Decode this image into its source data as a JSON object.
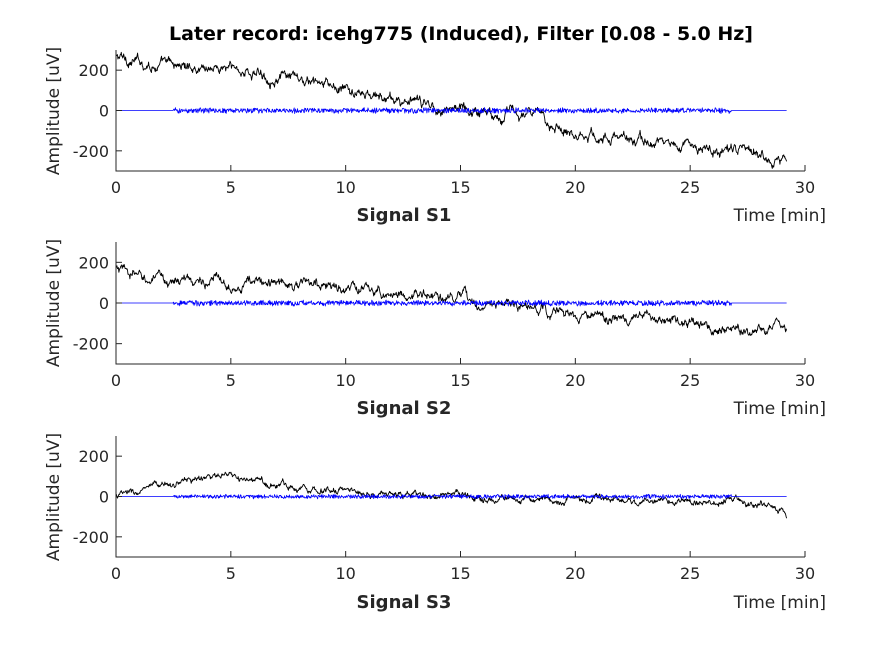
{
  "figure": {
    "title": "Later record: icehg775 (Induced), Filter [0.08 - 5.0 Hz]"
  },
  "colors": {
    "raw_signal": "#000000",
    "filtered_signal": "#0000ff",
    "axes": "#262626"
  },
  "chart_data": [
    {
      "type": "line",
      "subplot_label": "Signal S1",
      "xlabel": "Time [min]",
      "ylabel": "Amplitude [uV]",
      "xlim": [
        0,
        30
      ],
      "ylim": [
        -300,
        300
      ],
      "xticks": [
        0,
        5,
        10,
        15,
        20,
        25,
        30
      ],
      "yticks": [
        -200,
        0,
        200
      ],
      "grid": false,
      "series": [
        {
          "role": "raw",
          "color": "#000000",
          "x": [
            0,
            1,
            2,
            3,
            4,
            5,
            6,
            7,
            8,
            9,
            10,
            11,
            12,
            13,
            14,
            15,
            16,
            17,
            18,
            19,
            20,
            21,
            22,
            23,
            24,
            25,
            26,
            27,
            28,
            29,
            29.2
          ],
          "y": [
            265,
            240,
            225,
            220,
            220,
            210,
            185,
            170,
            140,
            120,
            95,
            70,
            50,
            35,
            20,
            10,
            0,
            -10,
            -25,
            -60,
            -100,
            -125,
            -140,
            -155,
            -165,
            -180,
            -195,
            -205,
            -215,
            -230,
            -235
          ],
          "noise": 32
        },
        {
          "role": "filtered",
          "color": "#0000ff",
          "x": [
            0,
            2.5,
            26.8,
            29.2
          ],
          "y": [
            0,
            0,
            0,
            0
          ],
          "noise_segment": [
            2.5,
            26.8
          ],
          "noise": 13
        }
      ]
    },
    {
      "type": "line",
      "subplot_label": "Signal S2",
      "xlabel": "Time [min]",
      "ylabel": "Amplitude [uV]",
      "xlim": [
        0,
        30
      ],
      "ylim": [
        -300,
        300
      ],
      "xticks": [
        0,
        5,
        10,
        15,
        20,
        25,
        30
      ],
      "yticks": [
        -200,
        0,
        200
      ],
      "grid": false,
      "series": [
        {
          "role": "raw",
          "color": "#000000",
          "x": [
            0,
            1,
            2,
            3,
            4,
            5,
            6,
            7,
            8,
            9,
            10,
            11,
            12,
            13,
            14,
            15,
            16,
            17,
            18,
            19,
            20,
            21,
            22,
            23,
            24,
            25,
            26,
            27,
            28,
            29,
            29.2
          ],
          "y": [
            165,
            125,
            105,
            110,
            110,
            105,
            100,
            95,
            95,
            85,
            70,
            60,
            50,
            40,
            25,
            10,
            0,
            -10,
            -25,
            -45,
            -65,
            -75,
            -80,
            -90,
            -95,
            -100,
            -110,
            -115,
            -120,
            -120,
            -120
          ],
          "noise": 30
        },
        {
          "role": "filtered",
          "color": "#0000ff",
          "x": [
            0,
            2.5,
            26.8,
            29.2
          ],
          "y": [
            0,
            0,
            0,
            0
          ],
          "noise_segment": [
            2.5,
            26.8
          ],
          "noise": 13
        }
      ]
    },
    {
      "type": "line",
      "subplot_label": "Signal S3",
      "xlabel": "Time [min]",
      "ylabel": "Amplitude [uV]",
      "xlim": [
        0,
        30
      ],
      "ylim": [
        -300,
        300
      ],
      "xticks": [
        0,
        5,
        10,
        15,
        20,
        25,
        30
      ],
      "yticks": [
        -200,
        0,
        200
      ],
      "grid": false,
      "series": [
        {
          "role": "raw",
          "color": "#000000",
          "x": [
            0,
            1,
            2,
            3,
            4,
            5,
            6,
            7,
            8,
            9,
            10,
            11,
            12,
            13,
            14,
            15,
            16,
            17,
            18,
            19,
            20,
            21,
            22,
            23,
            24,
            25,
            26,
            27,
            28,
            29,
            29.2
          ],
          "y": [
            5,
            20,
            50,
            80,
            95,
            90,
            75,
            60,
            50,
            40,
            30,
            20,
            10,
            5,
            0,
            -5,
            -10,
            -10,
            -15,
            -20,
            -15,
            -15,
            -20,
            -20,
            -25,
            -30,
            -25,
            -30,
            -35,
            -60,
            -90
          ],
          "noise": 20
        },
        {
          "role": "filtered",
          "color": "#0000ff",
          "x": [
            0,
            2.5,
            26.8,
            29.2
          ],
          "y": [
            0,
            0,
            0,
            0
          ],
          "noise_segment": [
            2.5,
            26.8
          ],
          "noise": 10
        }
      ]
    }
  ]
}
